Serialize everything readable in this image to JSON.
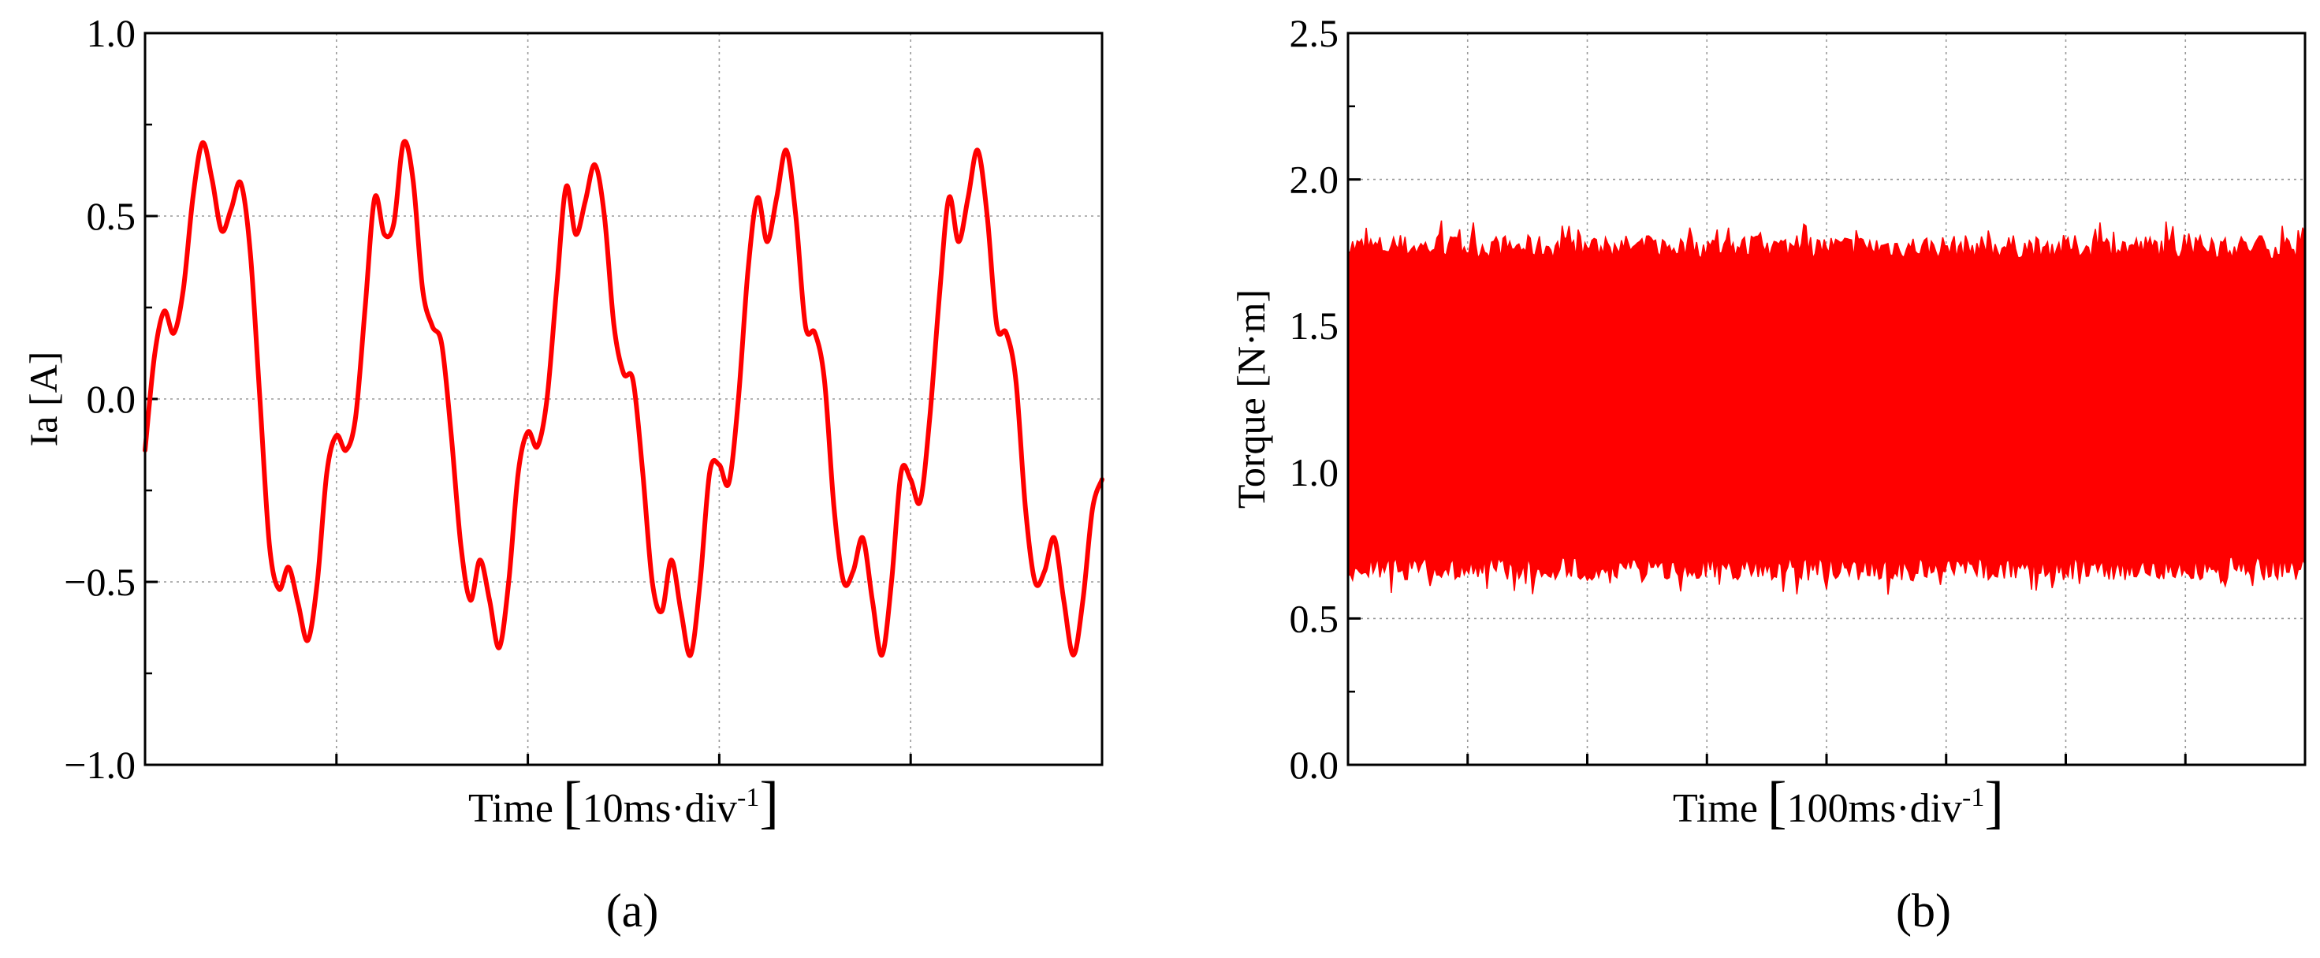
{
  "chart_data": [
    {
      "panel_label": "(a)",
      "type": "line",
      "xlabel": "Time",
      "xlabel_unit": "10ms·div",
      "xlabel_unit_sup": "-1",
      "ylabel": "Ia [A]",
      "ylim": [
        -1.0,
        1.0
      ],
      "yticks": [
        -1.0,
        -0.5,
        0.0,
        0.5,
        1.0
      ],
      "ytick_labels": [
        "−1.0",
        "−0.5",
        "0.0",
        "0.5",
        "1.0"
      ],
      "x_divisions": 5,
      "x_range_ms": [
        0,
        50
      ],
      "grid": true,
      "color": "#ff0000",
      "series": [
        {
          "x_ms": [
            0,
            0.5,
            1,
            1.5,
            2,
            2.5,
            3,
            3.5,
            4,
            4.5,
            5,
            5.5,
            6,
            6.5,
            7,
            7.5,
            8,
            8.5,
            9,
            9.5,
            10,
            10.5,
            11,
            11.5,
            12,
            12.5,
            13,
            13.5,
            14,
            14.5,
            15,
            15.5,
            16,
            16.5,
            17,
            17.5,
            18,
            18.5,
            19,
            19.5,
            20,
            20.5,
            21,
            21.5,
            22,
            22.5,
            23,
            23.5,
            24,
            24.5,
            25,
            25.5,
            26,
            26.5,
            27,
            27.5,
            28,
            28.5,
            29,
            29.5,
            30,
            30.5,
            31,
            31.5,
            32,
            32.5,
            33,
            33.5,
            34,
            34.5,
            35,
            35.5,
            36,
            36.5,
            37,
            37.5,
            38,
            38.5,
            39,
            39.5,
            40,
            40.5,
            41,
            41.5,
            42,
            42.5,
            43,
            43.5,
            44,
            44.5,
            45,
            45.5,
            46,
            46.5,
            47,
            47.5,
            48,
            48.5,
            49,
            49.5,
            50
          ],
          "values": [
            -0.14,
            0.12,
            0.24,
            0.18,
            0.3,
            0.55,
            0.7,
            0.6,
            0.46,
            0.52,
            0.59,
            0.4,
            0.0,
            -0.4,
            -0.52,
            -0.46,
            -0.56,
            -0.66,
            -0.5,
            -0.2,
            -0.1,
            -0.14,
            -0.05,
            0.25,
            0.55,
            0.45,
            0.48,
            0.7,
            0.6,
            0.3,
            0.2,
            0.15,
            -0.1,
            -0.4,
            -0.55,
            -0.44,
            -0.55,
            -0.68,
            -0.5,
            -0.2,
            -0.09,
            -0.13,
            0.0,
            0.3,
            0.58,
            0.45,
            0.54,
            0.64,
            0.5,
            0.2,
            0.07,
            0.05,
            -0.2,
            -0.5,
            -0.58,
            -0.44,
            -0.58,
            -0.7,
            -0.5,
            -0.2,
            -0.18,
            -0.23,
            0.0,
            0.35,
            0.55,
            0.43,
            0.55,
            0.68,
            0.5,
            0.2,
            0.18,
            0.05,
            -0.3,
            -0.5,
            -0.47,
            -0.38,
            -0.55,
            -0.7,
            -0.5,
            -0.2,
            -0.22,
            -0.28,
            -0.05,
            0.28,
            0.55,
            0.43,
            0.55,
            0.68,
            0.5,
            0.2,
            0.18,
            0.05,
            -0.3,
            -0.5,
            -0.47,
            -0.38,
            -0.55,
            -0.7,
            -0.55,
            -0.3,
            -0.22
          ]
        }
      ]
    },
    {
      "panel_label": "(b)",
      "type": "line",
      "xlabel": "Time",
      "xlabel_unit": "100ms·div",
      "xlabel_unit_sup": "-1",
      "ylabel": "Torque [N·m]",
      "ylim": [
        0.0,
        2.5
      ],
      "yticks": [
        0.0,
        0.5,
        1.0,
        1.5,
        2.0,
        2.5
      ],
      "ytick_labels": [
        "0.0",
        "0.5",
        "1.0",
        "1.5",
        "2.0",
        "2.5"
      ],
      "x_divisions": 8,
      "grid": true,
      "color": "#ff0000",
      "band_mean": 1.2,
      "band_typical_range": [
        0.66,
        1.78
      ],
      "band_extreme_range": [
        0.58,
        1.86
      ]
    }
  ]
}
